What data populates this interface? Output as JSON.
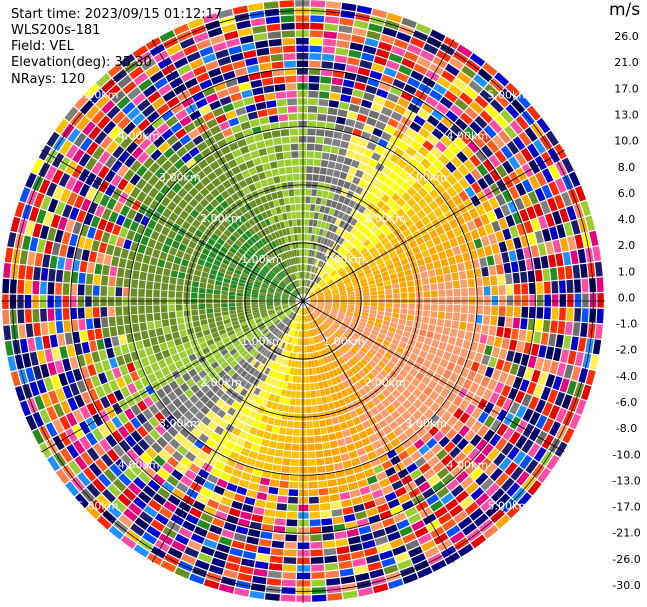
{
  "header": {
    "start_time": "Start time: 2023/09/15 01:12:17",
    "instrument": "WLS200s-181",
    "field": "Field: VEL",
    "elevation": "Elevation(deg): 35.30",
    "nrays": "NRays: 120"
  },
  "colorbar": {
    "unit": "m/s",
    "ticks": [
      "26.0",
      "21.0",
      "17.0",
      "13.0",
      "10.0",
      "8.0",
      "6.0",
      "4.0",
      "2.0",
      "1.0",
      "0.0",
      "-1.0",
      "-2.0",
      "-4.0",
      "-6.0",
      "-8.0",
      "-10.0",
      "-13.0",
      "-17.0",
      "-21.0",
      "-26.0",
      "-30.0"
    ],
    "colors": [
      "#e6007e",
      "#ff4da6",
      "#e80000",
      "#ff2a00",
      "#ff5a1a",
      "#ff7f50",
      "#ff9966",
      "#ffa500",
      "#ffc000",
      "#ffff00",
      "#ffee55",
      "#808080",
      "#6e6e6e",
      "#9acd32",
      "#6b8e23",
      "#228b22",
      "#1e90ff",
      "#0050ff",
      "#0000cd",
      "#000080",
      "#000060",
      "#1a1a6e"
    ]
  },
  "chart_data": {
    "type": "ppi",
    "title": "",
    "field": "VEL",
    "units": "m/s",
    "elevation_deg": 35.3,
    "n_rays": 120,
    "range_rings_km": [
      1.0,
      2.0,
      3.0,
      4.0,
      5.0
    ],
    "ring_labels": [
      "1.00km",
      "2.00km",
      "3.00km",
      "4.00km",
      "5.00km"
    ],
    "color_range": [
      -30.0,
      26.0
    ],
    "pattern": [
      {
        "sector": "NW",
        "dominant": "-6.0 to -4.0 (green)"
      },
      {
        "sector": "SE",
        "dominant": "4.0 to 8.0 (yellow/orange)"
      },
      {
        "sector": "zero-line",
        "dominant": "0.0 to -1.0 (grey), NE-SW band"
      }
    ]
  }
}
